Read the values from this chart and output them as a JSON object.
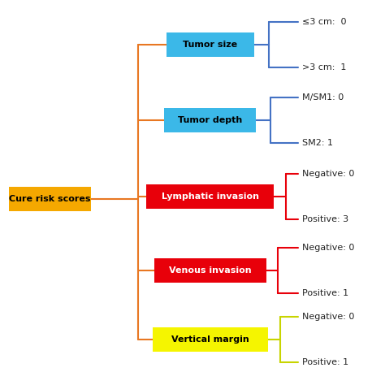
{
  "root_label": "Cure risk scores",
  "root_color": "#F5A800",
  "root_text_color": "#000000",
  "branches": [
    {
      "label": "Tumor size",
      "box_color": "#3BB8E8",
      "text_color": "#000000",
      "connector_color": "#4472C4",
      "leaves": [
        "≤3 cm:  0",
        ">3 cm:  1"
      ],
      "leaf_color": "#222222"
    },
    {
      "label": "Tumor depth",
      "box_color": "#3BB8E8",
      "text_color": "#000000",
      "connector_color": "#4472C4",
      "leaves": [
        "M/SM1: 0",
        "SM2: 1"
      ],
      "leaf_color": "#222222"
    },
    {
      "label": "Lymphatic invasion",
      "box_color": "#E8000A",
      "text_color": "#FFFFFF",
      "connector_color": "#E8000A",
      "leaves": [
        "Negative: 0",
        "Positive: 3"
      ],
      "leaf_color": "#222222"
    },
    {
      "label": "Venous invasion",
      "box_color": "#E8000A",
      "text_color": "#FFFFFF",
      "connector_color": "#E8000A",
      "leaves": [
        "Negative: 0",
        "Positive: 1"
      ],
      "leaf_color": "#222222"
    },
    {
      "label": "Vertical margin",
      "box_color": "#F5F500",
      "text_color": "#000000",
      "connector_color": "#C8D400",
      "leaves": [
        "Negative: 0",
        "Positive: 1"
      ],
      "leaf_color": "#222222"
    }
  ],
  "root_connector_color": "#E87722",
  "background_color": "#FFFFFF",
  "fig_width": 4.74,
  "fig_height": 4.74
}
